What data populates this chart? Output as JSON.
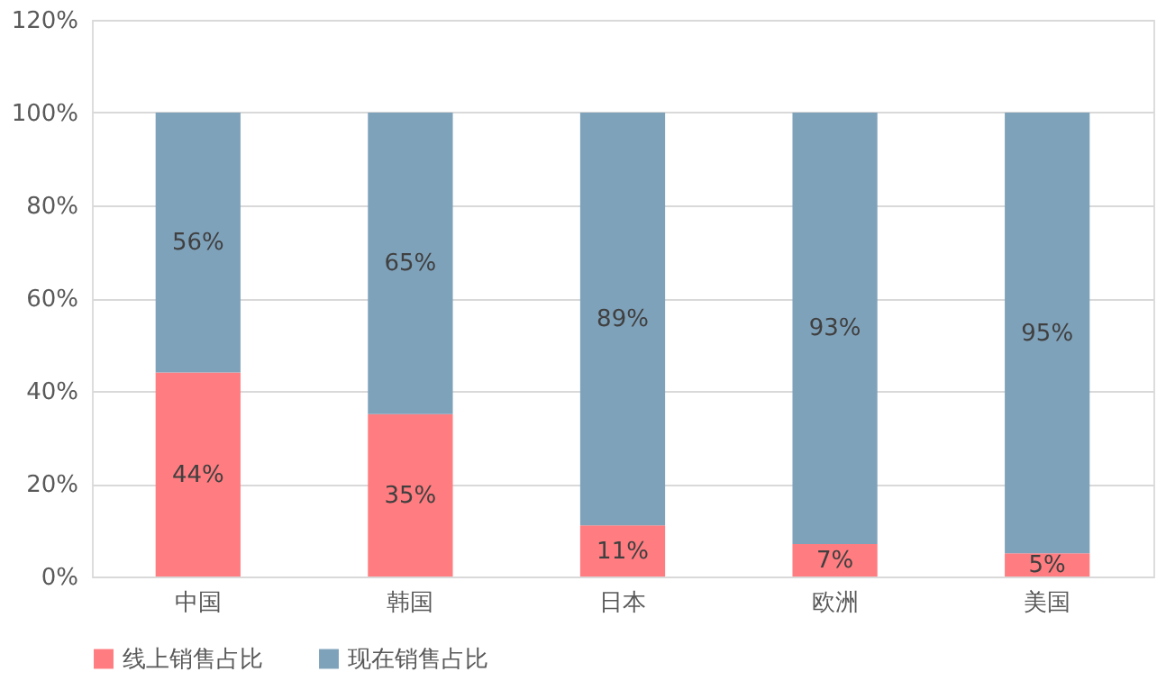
{
  "chart_data": {
    "type": "bar",
    "stacked": true,
    "categories": [
      "中国",
      "韩国",
      "日本",
      "欧洲",
      "美国"
    ],
    "series": [
      {
        "name": "线上销售占比",
        "color": "#ff7c80",
        "values": [
          44,
          35,
          11,
          7,
          5
        ],
        "value_labels": [
          "44%",
          "35%",
          "11%",
          "7%",
          "5%"
        ]
      },
      {
        "name": "现在销售占比",
        "color": "#7fa2bb",
        "values": [
          56,
          65,
          89,
          93,
          95
        ],
        "value_labels": [
          "56%",
          "65%",
          "89%",
          "93%",
          "95%"
        ]
      }
    ],
    "ylim": [
      0,
      120
    ],
    "yticks": [
      {
        "value": 0,
        "label": "0%"
      },
      {
        "value": 20,
        "label": "20%"
      },
      {
        "value": 40,
        "label": "40%"
      },
      {
        "value": 60,
        "label": "60%"
      },
      {
        "value": 80,
        "label": "80%"
      },
      {
        "value": 100,
        "label": "100%"
      },
      {
        "value": 120,
        "label": "120%"
      }
    ],
    "grid": "y",
    "legend": "bottom"
  }
}
